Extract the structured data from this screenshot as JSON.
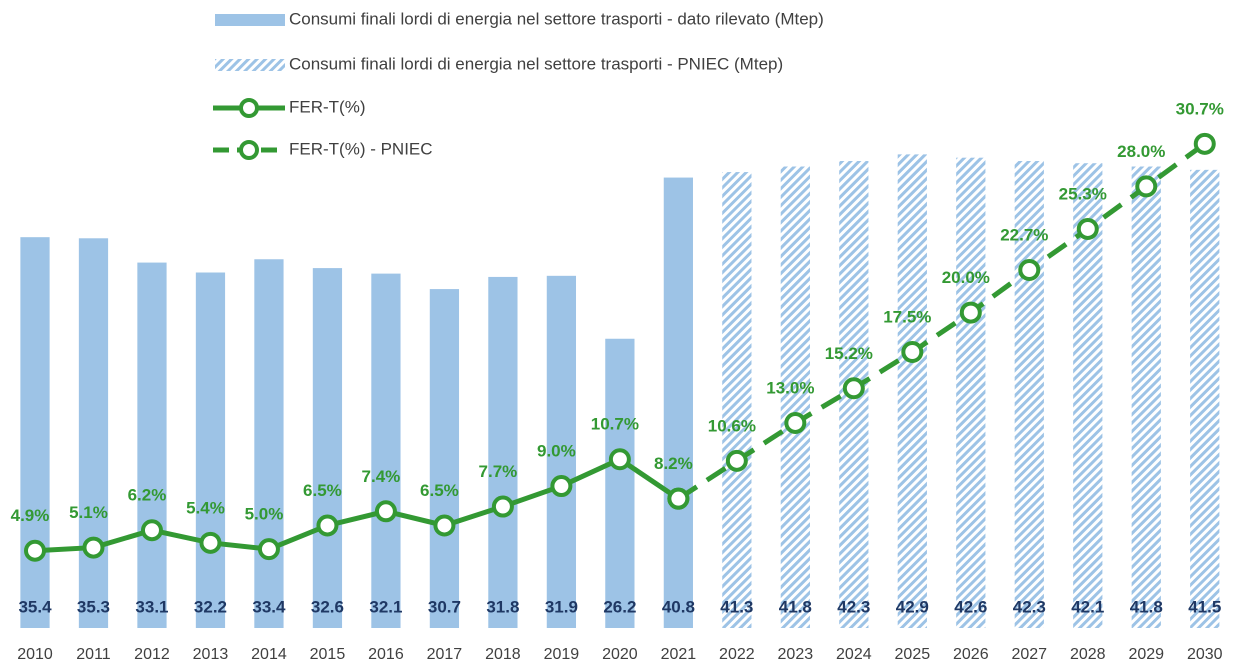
{
  "chart_data": {
    "type": "bar-line",
    "categories": [
      "2010",
      "2011",
      "2012",
      "2013",
      "2014",
      "2015",
      "2016",
      "2017",
      "2018",
      "2019",
      "2020",
      "2021",
      "2022",
      "2023",
      "2024",
      "2025",
      "2026",
      "2027",
      "2028",
      "2029",
      "2030"
    ],
    "series": [
      {
        "name": "Consumi finali lordi di energia nel settore trasporti - dato rilevato (Mtep)",
        "kind": "bar",
        "color": "#9dc3e6",
        "values": [
          35.4,
          35.3,
          33.1,
          32.2,
          33.4,
          32.6,
          32.1,
          30.7,
          31.8,
          31.9,
          26.2,
          40.8,
          null,
          null,
          null,
          null,
          null,
          null,
          null,
          null,
          null
        ]
      },
      {
        "name": "Consumi finali lordi di energia nel settore trasporti - PNIEC (Mtep)",
        "kind": "bar",
        "hatched": true,
        "color": "#9dc3e6",
        "values": [
          null,
          null,
          null,
          null,
          null,
          null,
          null,
          null,
          null,
          null,
          null,
          null,
          41.3,
          41.8,
          42.3,
          42.9,
          42.6,
          42.3,
          42.1,
          41.8,
          41.5
        ]
      },
      {
        "name": "FER-T(%)",
        "kind": "line",
        "axis": "y2",
        "color": "#339933",
        "values": [
          4.9,
          5.1,
          6.2,
          5.4,
          5.0,
          6.5,
          7.4,
          6.5,
          7.7,
          9.0,
          10.7,
          8.2,
          null,
          null,
          null,
          null,
          null,
          null,
          null,
          null,
          null
        ],
        "value_labels": [
          "4.9%",
          "5.1%",
          "6.2%",
          "5.4%",
          "5.0%",
          "6.5%",
          "7.4%",
          "6.5%",
          "7.7%",
          "9.0%",
          "10.7%",
          "8.2%",
          null,
          null,
          null,
          null,
          null,
          null,
          null,
          null,
          null
        ]
      },
      {
        "name": "FER-T(%) - PNIEC",
        "kind": "line",
        "dashed": true,
        "axis": "y2",
        "color": "#339933",
        "values": [
          null,
          null,
          null,
          null,
          null,
          null,
          null,
          null,
          null,
          null,
          null,
          8.2,
          10.6,
          13.0,
          15.2,
          17.5,
          20.0,
          22.7,
          25.3,
          28.0,
          30.7
        ],
        "value_labels": [
          null,
          null,
          null,
          null,
          null,
          null,
          null,
          null,
          null,
          null,
          null,
          null,
          "10.6%",
          "13.0%",
          "15.2%",
          "17.5%",
          "20.0%",
          "22.7%",
          "25.3%",
          "28.0%",
          "30.7%"
        ]
      }
    ],
    "ylim": [
      0,
      50
    ],
    "y2lim": [
      0,
      35
    ],
    "grid": false,
    "legend": "top"
  }
}
